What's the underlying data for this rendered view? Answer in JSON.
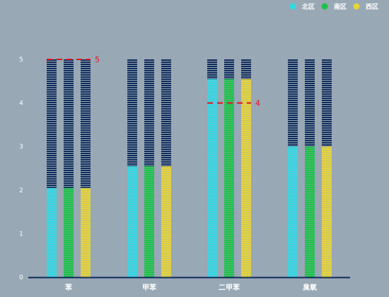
{
  "chart_data": {
    "type": "bar",
    "categories": [
      "苯",
      "甲苯",
      "二甲苯",
      "臭氧"
    ],
    "series": [
      {
        "name": "北区",
        "color": "#35d8e4",
        "values": [
          2.05,
          2.55,
          4.55,
          3.0
        ]
      },
      {
        "name": "南区",
        "color": "#1ec24a",
        "values": [
          2.05,
          2.55,
          4.55,
          3.0
        ]
      },
      {
        "name": "西区",
        "color": "#e6d43a",
        "values": [
          2.05,
          2.55,
          4.55,
          3.0
        ]
      }
    ],
    "ylim": [
      0,
      5
    ],
    "yticks": [
      "0",
      "1",
      "2",
      "3",
      "4",
      "5"
    ],
    "background_bar_value": 5,
    "background_bar_color": "#0d2a5a",
    "axis_color": "#0d2a5a",
    "reference_lines": [
      {
        "category": "苯",
        "value": 5,
        "label": "5",
        "color": "#e8101a"
      },
      {
        "category": "二甲苯",
        "value": 4,
        "label": "4",
        "color": "#e8101a"
      }
    ],
    "legend_position": "top-right",
    "grid": false
  }
}
